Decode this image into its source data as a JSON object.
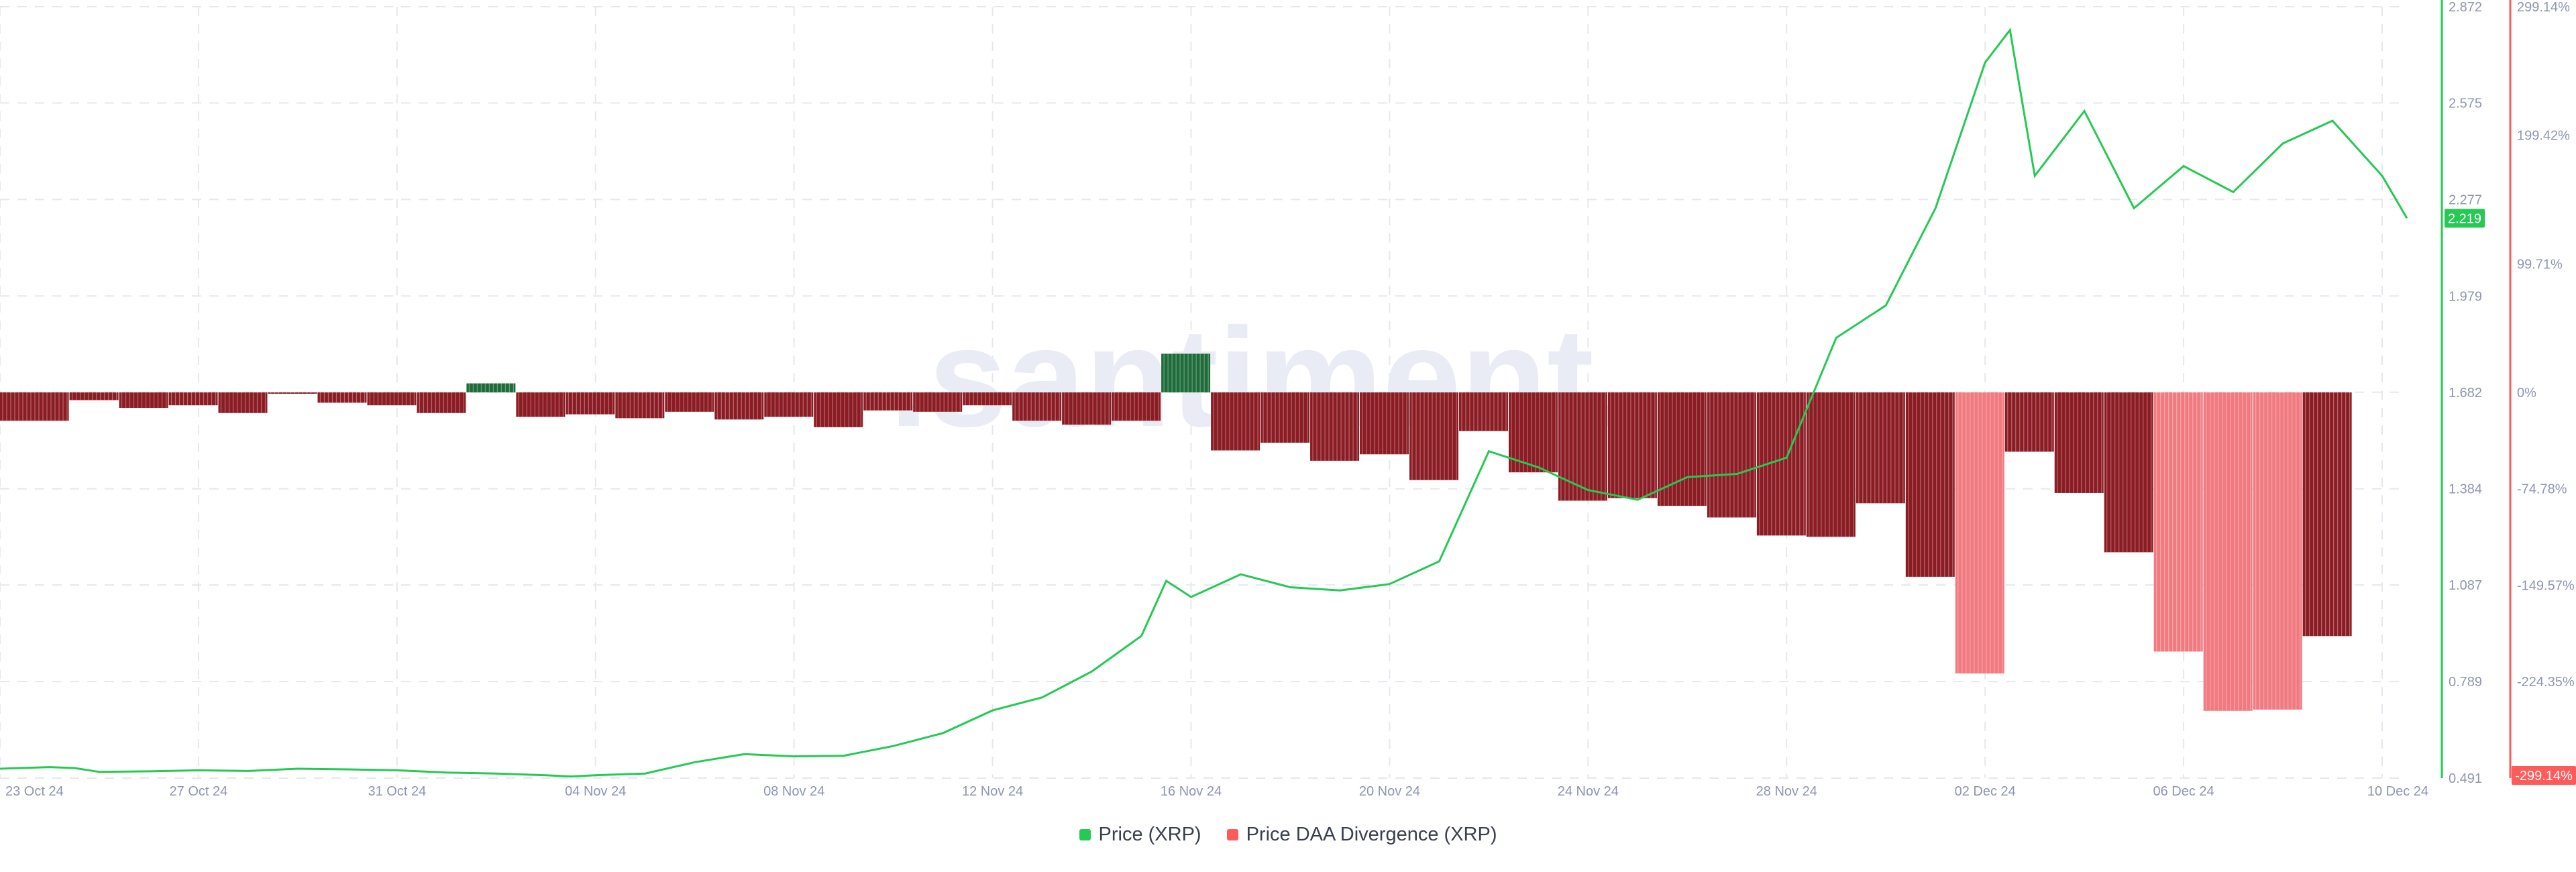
{
  "watermark": ".santiment.",
  "legend": {
    "price_label": "Price (XRP)",
    "divergence_label": "Price DAA Divergence (XRP)"
  },
  "colors": {
    "price_line": "#26c953",
    "bar_negative": "#8b1c24",
    "bar_negative_light": "#f07a80",
    "bar_positive": "#1f6b3a",
    "price_badge": "#26c953",
    "divergence_badge": "#ff5b5b",
    "grid": "#e6e8ef",
    "tick_text": "#8f95b2"
  },
  "chart_data": {
    "type": "line+bar",
    "x_range": [
      "23 Oct 24",
      "10 Dec 24"
    ],
    "x_ticks": [
      "23 Oct 24",
      "27 Oct 24",
      "31 Oct 24",
      "04 Nov 24",
      "08 Nov 24",
      "12 Nov 24",
      "16 Nov 24",
      "20 Nov 24",
      "24 Nov 24",
      "28 Nov 24",
      "02 Dec 24",
      "06 Dec 24",
      "10 Dec 24"
    ],
    "left_axis": {
      "ticks": [
        "0.491",
        "0.789",
        "1.087",
        "1.384",
        "1.682",
        "1.979",
        "2.277",
        "2.575",
        "2.872"
      ],
      "range": [
        0.491,
        2.872
      ],
      "current_value": "2.219"
    },
    "right_axis": {
      "ticks": [
        "299.14%",
        "199.42%",
        "99.71%",
        "0%",
        "-74.78%",
        "-149.57%",
        "-224.35%"
      ],
      "range": [
        -299.14,
        299.14
      ],
      "current_value": "-299.14%"
    },
    "price_series": {
      "name": "Price (XRP)",
      "points": [
        [
          0,
          0.52
        ],
        [
          1,
          0.525
        ],
        [
          1.5,
          0.522
        ],
        [
          2,
          0.51
        ],
        [
          3,
          0.512
        ],
        [
          4,
          0.515
        ],
        [
          5,
          0.513
        ],
        [
          6,
          0.52
        ],
        [
          7,
          0.518
        ],
        [
          8,
          0.515
        ],
        [
          9,
          0.508
        ],
        [
          10,
          0.505
        ],
        [
          11,
          0.5
        ],
        [
          11.5,
          0.496
        ],
        [
          12,
          0.5
        ],
        [
          13,
          0.505
        ],
        [
          14,
          0.54
        ],
        [
          15,
          0.565
        ],
        [
          16,
          0.558
        ],
        [
          17,
          0.56
        ],
        [
          18,
          0.59
        ],
        [
          19,
          0.63
        ],
        [
          20,
          0.7
        ],
        [
          21,
          0.74
        ],
        [
          22,
          0.82
        ],
        [
          23,
          0.93
        ],
        [
          23.5,
          1.1
        ],
        [
          24,
          1.05
        ],
        [
          25,
          1.12
        ],
        [
          26,
          1.08
        ],
        [
          27,
          1.07
        ],
        [
          28,
          1.09
        ],
        [
          29,
          1.16
        ],
        [
          30,
          1.5
        ],
        [
          31,
          1.45
        ],
        [
          32,
          1.38
        ],
        [
          33,
          1.35
        ],
        [
          34,
          1.42
        ],
        [
          35,
          1.43
        ],
        [
          36,
          1.48
        ],
        [
          37,
          1.85
        ],
        [
          38,
          1.95
        ],
        [
          39,
          2.25
        ],
        [
          40,
          2.7
        ],
        [
          40.5,
          2.8
        ],
        [
          41,
          2.35
        ],
        [
          42,
          2.55
        ],
        [
          43,
          2.25
        ],
        [
          44,
          2.38
        ],
        [
          45,
          2.3
        ],
        [
          46,
          2.45
        ],
        [
          47,
          2.52
        ],
        [
          48,
          2.35
        ],
        [
          48.5,
          2.219
        ]
      ]
    },
    "divergence_series": {
      "name": "Price DAA Divergence (XRP)",
      "bars": [
        {
          "from": 0,
          "to": 1.4,
          "value": -22
        },
        {
          "from": 1.4,
          "to": 2.4,
          "value": -6
        },
        {
          "from": 2.4,
          "to": 3.4,
          "value": -12
        },
        {
          "from": 3.4,
          "to": 4.4,
          "value": -10
        },
        {
          "from": 4.4,
          "to": 5.4,
          "value": -16
        },
        {
          "from": 5.4,
          "to": 6.4,
          "value": -1
        },
        {
          "from": 6.4,
          "to": 7.4,
          "value": -8
        },
        {
          "from": 7.4,
          "to": 8.4,
          "value": -10
        },
        {
          "from": 8.4,
          "to": 9.4,
          "value": -16
        },
        {
          "from": 9.4,
          "to": 10.4,
          "value": 7
        },
        {
          "from": 10.4,
          "to": 11.4,
          "value": -19
        },
        {
          "from": 11.4,
          "to": 12.4,
          "value": -17
        },
        {
          "from": 12.4,
          "to": 13.4,
          "value": -20
        },
        {
          "from": 13.4,
          "to": 14.4,
          "value": -15
        },
        {
          "from": 14.4,
          "to": 15.4,
          "value": -21
        },
        {
          "from": 15.4,
          "to": 16.4,
          "value": -19
        },
        {
          "from": 16.4,
          "to": 17.4,
          "value": -27
        },
        {
          "from": 17.4,
          "to": 18.4,
          "value": -14
        },
        {
          "from": 18.4,
          "to": 19.4,
          "value": -15
        },
        {
          "from": 19.4,
          "to": 20.4,
          "value": -10
        },
        {
          "from": 20.4,
          "to": 21.4,
          "value": -22
        },
        {
          "from": 21.4,
          "to": 22.4,
          "value": -25
        },
        {
          "from": 22.4,
          "to": 23.4,
          "value": -22
        },
        {
          "from": 23.4,
          "to": 24.4,
          "value": 30
        },
        {
          "from": 24.4,
          "to": 25.4,
          "value": -45
        },
        {
          "from": 25.4,
          "to": 26.4,
          "value": -39
        },
        {
          "from": 26.4,
          "to": 27.4,
          "value": -53
        },
        {
          "from": 27.4,
          "to": 28.4,
          "value": -48
        },
        {
          "from": 28.4,
          "to": 29.4,
          "value": -68
        },
        {
          "from": 29.4,
          "to": 30.4,
          "value": -30
        },
        {
          "from": 30.4,
          "to": 31.4,
          "value": -62
        },
        {
          "from": 31.4,
          "to": 32.4,
          "value": -84
        },
        {
          "from": 32.4,
          "to": 33.4,
          "value": -82
        },
        {
          "from": 33.4,
          "to": 34.4,
          "value": -88
        },
        {
          "from": 34.4,
          "to": 35.4,
          "value": -97
        },
        {
          "from": 35.4,
          "to": 36.4,
          "value": -111
        },
        {
          "from": 36.4,
          "to": 37.4,
          "value": -112
        },
        {
          "from": 37.4,
          "to": 38.4,
          "value": -86
        },
        {
          "from": 38.4,
          "to": 39.4,
          "value": -143
        },
        {
          "from": 39.4,
          "to": 40.4,
          "value": -218,
          "light": true
        },
        {
          "from": 40.4,
          "to": 41.4,
          "value": -46
        },
        {
          "from": 41.4,
          "to": 42.4,
          "value": -78
        },
        {
          "from": 42.4,
          "to": 43.4,
          "value": -124
        },
        {
          "from": 43.4,
          "to": 44.4,
          "value": -201,
          "light": true
        },
        {
          "from": 44.4,
          "to": 45.4,
          "value": -247,
          "light": true
        },
        {
          "from": 45.4,
          "to": 46.4,
          "value": -246,
          "light": true
        },
        {
          "from": 46.4,
          "to": 47.4,
          "value": -189
        }
      ]
    }
  }
}
